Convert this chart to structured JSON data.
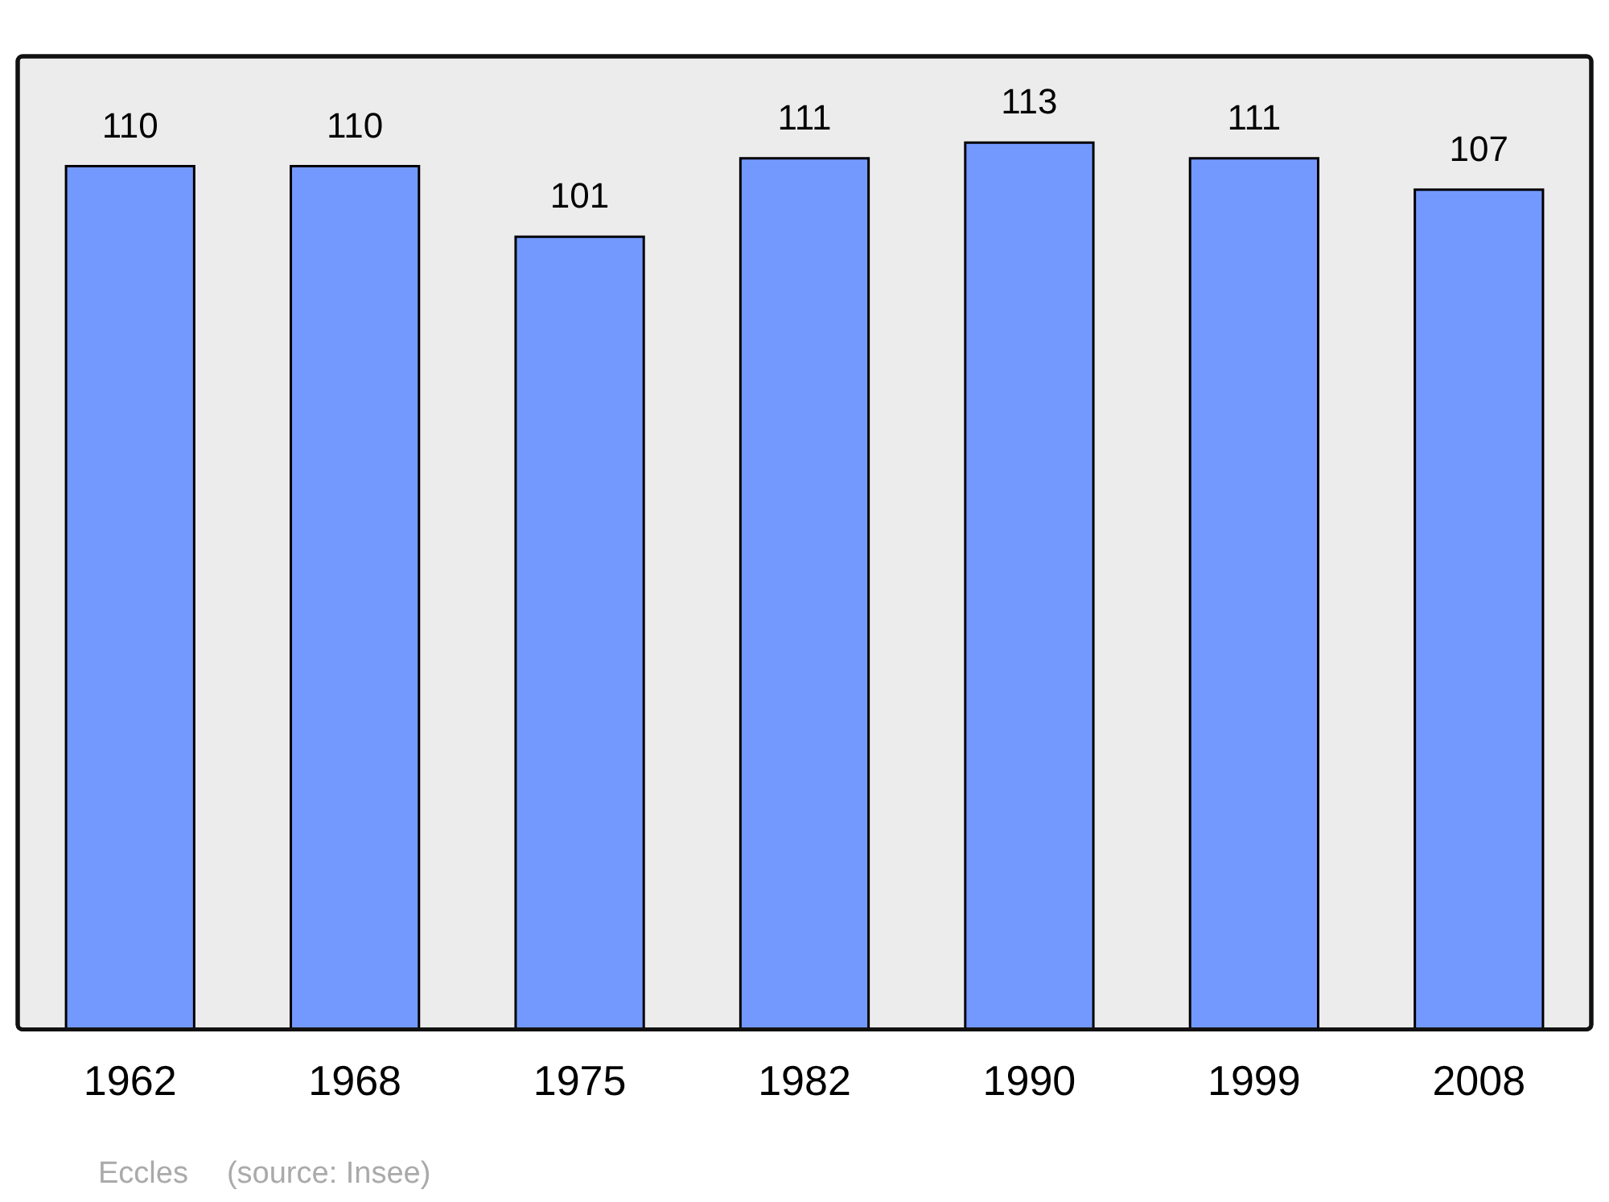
{
  "chart_data": {
    "type": "bar",
    "categories": [
      "1962",
      "1968",
      "1975",
      "1982",
      "1990",
      "1999",
      "2008"
    ],
    "values": [
      110,
      110,
      101,
      111,
      113,
      111,
      107
    ],
    "color": "#7399ff",
    "ylim": [
      0,
      124
    ],
    "tick_labels": "x",
    "data_labels": true,
    "grid": false,
    "legend": false,
    "annotations": [
      "Eccles",
      "(source: Insee)"
    ]
  }
}
